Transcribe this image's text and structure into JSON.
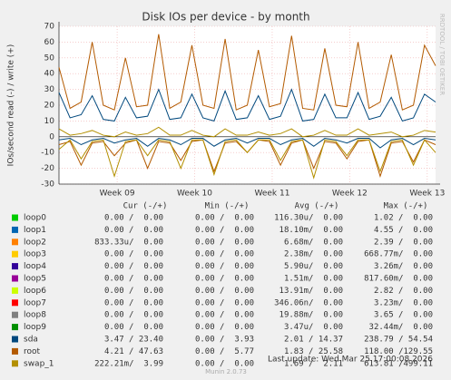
{
  "chart_data": {
    "type": "line",
    "title": "Disk IOs per device - by month",
    "y_label": "IOs/second read (-) / write (+)",
    "side_label": "RRDTOOL / TOBI OETIKER",
    "ylim": [
      -30,
      70
    ],
    "yticks": [
      -30,
      -20,
      -10,
      0,
      10,
      20,
      30,
      40,
      50,
      60,
      70
    ],
    "xlim": [
      0,
      34
    ],
    "xticks": [
      {
        "value": 5.25,
        "label": "Week 09"
      },
      {
        "value": 12.25,
        "label": "Week 10"
      },
      {
        "value": 19.25,
        "label": "Week 11"
      },
      {
        "value": 26.25,
        "label": "Week 12"
      },
      {
        "value": 33.25,
        "label": "Week 13"
      }
    ],
    "grid": true,
    "series": [
      {
        "name": "root",
        "color": "#b35a00",
        "values": [
          44,
          18,
          22,
          60,
          20,
          17,
          50,
          19,
          20,
          65,
          18,
          22,
          58,
          20,
          18,
          62,
          17,
          20,
          55,
          19,
          21,
          64,
          18,
          17,
          56,
          20,
          19,
          60,
          18,
          22,
          52,
          17,
          20,
          58,
          45
        ]
      },
      {
        "name": "root",
        "color": "#b35a00",
        "values": [
          -5,
          -3,
          -18,
          -4,
          -3,
          -12,
          -4,
          -2,
          -20,
          -3,
          -4,
          -15,
          -3,
          -2,
          -22,
          -4,
          -3,
          -10,
          -2,
          -3,
          -18,
          -4,
          -2,
          -20,
          -3,
          -4,
          -14,
          -3,
          -2,
          -25,
          -4,
          -3,
          -16,
          -2,
          -5
        ]
      },
      {
        "name": "sda",
        "color": "#00487d",
        "values": [
          28,
          12,
          14,
          26,
          11,
          10,
          25,
          12,
          13,
          30,
          11,
          12,
          27,
          12,
          10,
          29,
          11,
          12,
          26,
          11,
          13,
          30,
          10,
          11,
          27,
          12,
          12,
          28,
          11,
          13,
          25,
          10,
          12,
          27,
          22
        ]
      },
      {
        "name": "sda",
        "color": "#00487d",
        "values": [
          -2,
          -1,
          -5,
          -2,
          -1,
          -4,
          -2,
          -1,
          -6,
          -1,
          -2,
          -5,
          -1,
          -1,
          -6,
          -2,
          -1,
          -4,
          -1,
          -1,
          -5,
          -2,
          -1,
          -6,
          -1,
          -2,
          -4,
          -1,
          -1,
          -7,
          -2,
          -1,
          -5,
          -1,
          -2
        ]
      },
      {
        "name": "swap_1",
        "color": "#b38f00",
        "values": [
          5,
          1,
          2,
          4,
          1,
          0,
          3,
          1,
          2,
          6,
          1,
          1,
          4,
          1,
          0,
          5,
          1,
          1,
          3,
          1,
          2,
          5,
          0,
          1,
          4,
          1,
          1,
          5,
          1,
          2,
          3,
          0,
          1,
          4,
          3
        ]
      },
      {
        "name": "swap_1",
        "color": "#b38f00",
        "values": [
          -8,
          -2,
          -14,
          -3,
          -2,
          -25,
          -3,
          -2,
          -12,
          -2,
          -3,
          -20,
          -2,
          -2,
          -24,
          -3,
          -2,
          -10,
          -2,
          -2,
          -15,
          -3,
          -2,
          -26,
          -2,
          -3,
          -12,
          -2,
          -2,
          -22,
          -3,
          -2,
          -18,
          -2,
          -10
        ]
      }
    ]
  },
  "legend": {
    "header": [
      "Cur (-/+)",
      "Min (-/+)",
      "Avg (-/+)",
      "Max (-/+)"
    ],
    "rows": [
      {
        "color": "#00cc00",
        "name": "loop0",
        "cur": "0.00 /  0.00",
        "min": "0.00 /  0.00",
        "avg": "116.30u/  0.00",
        "max": "1.02 /  0.00"
      },
      {
        "color": "#0066b3",
        "name": "loop1",
        "cur": "0.00 /  0.00",
        "min": "0.00 /  0.00",
        "avg": "18.10m/  0.00",
        "max": "4.55 /  0.00"
      },
      {
        "color": "#ff8000",
        "name": "loop2",
        "cur": "833.33u/  0.00",
        "min": "0.00 /  0.00",
        "avg": "6.68m/  0.00",
        "max": "2.39 /  0.00"
      },
      {
        "color": "#ffcc00",
        "name": "loop3",
        "cur": "0.00 /  0.00",
        "min": "0.00 /  0.00",
        "avg": "2.38m/  0.00",
        "max": "668.77m/  0.00"
      },
      {
        "color": "#330099",
        "name": "loop4",
        "cur": "0.00 /  0.00",
        "min": "0.00 /  0.00",
        "avg": "5.90u/  0.00",
        "max": "3.26m/  0.00"
      },
      {
        "color": "#990099",
        "name": "loop5",
        "cur": "0.00 /  0.00",
        "min": "0.00 /  0.00",
        "avg": "1.51m/  0.00",
        "max": "817.60m/  0.00"
      },
      {
        "color": "#ccff00",
        "name": "loop6",
        "cur": "0.00 /  0.00",
        "min": "0.00 /  0.00",
        "avg": "13.91m/  0.00",
        "max": "2.82 /  0.00"
      },
      {
        "color": "#ff0000",
        "name": "loop7",
        "cur": "0.00 /  0.00",
        "min": "0.00 /  0.00",
        "avg": "346.06n/  0.00",
        "max": "3.23m/  0.00"
      },
      {
        "color": "#808080",
        "name": "loop8",
        "cur": "0.00 /  0.00",
        "min": "0.00 /  0.00",
        "avg": "19.88m/  0.00",
        "max": "3.65 /  0.00"
      },
      {
        "color": "#008f00",
        "name": "loop9",
        "cur": "0.00 /  0.00",
        "min": "0.00 /  0.00",
        "avg": "3.47u/  0.00",
        "max": "32.44m/  0.00"
      },
      {
        "color": "#00487d",
        "name": "sda",
        "cur": "3.47 / 23.40",
        "min": "0.00 /  3.93",
        "avg": "2.01 / 14.37",
        "max": "238.79 / 54.54"
      },
      {
        "color": "#b35a00",
        "name": "root",
        "cur": "4.21 / 47.63",
        "min": "0.00 /  5.77",
        "avg": "1.83 / 25.58",
        "max": "118.00 /129.55"
      },
      {
        "color": "#b38f00",
        "name": "swap_1",
        "cur": "222.21m/  3.99",
        "min": "0.00 /  0.00",
        "avg": "1.69 /  2.11",
        "max": "613.81 /499.11"
      }
    ],
    "last_update": "Last update: Wed Mar 25 17:00:08 2026",
    "version": "Munin 2.0.73"
  }
}
